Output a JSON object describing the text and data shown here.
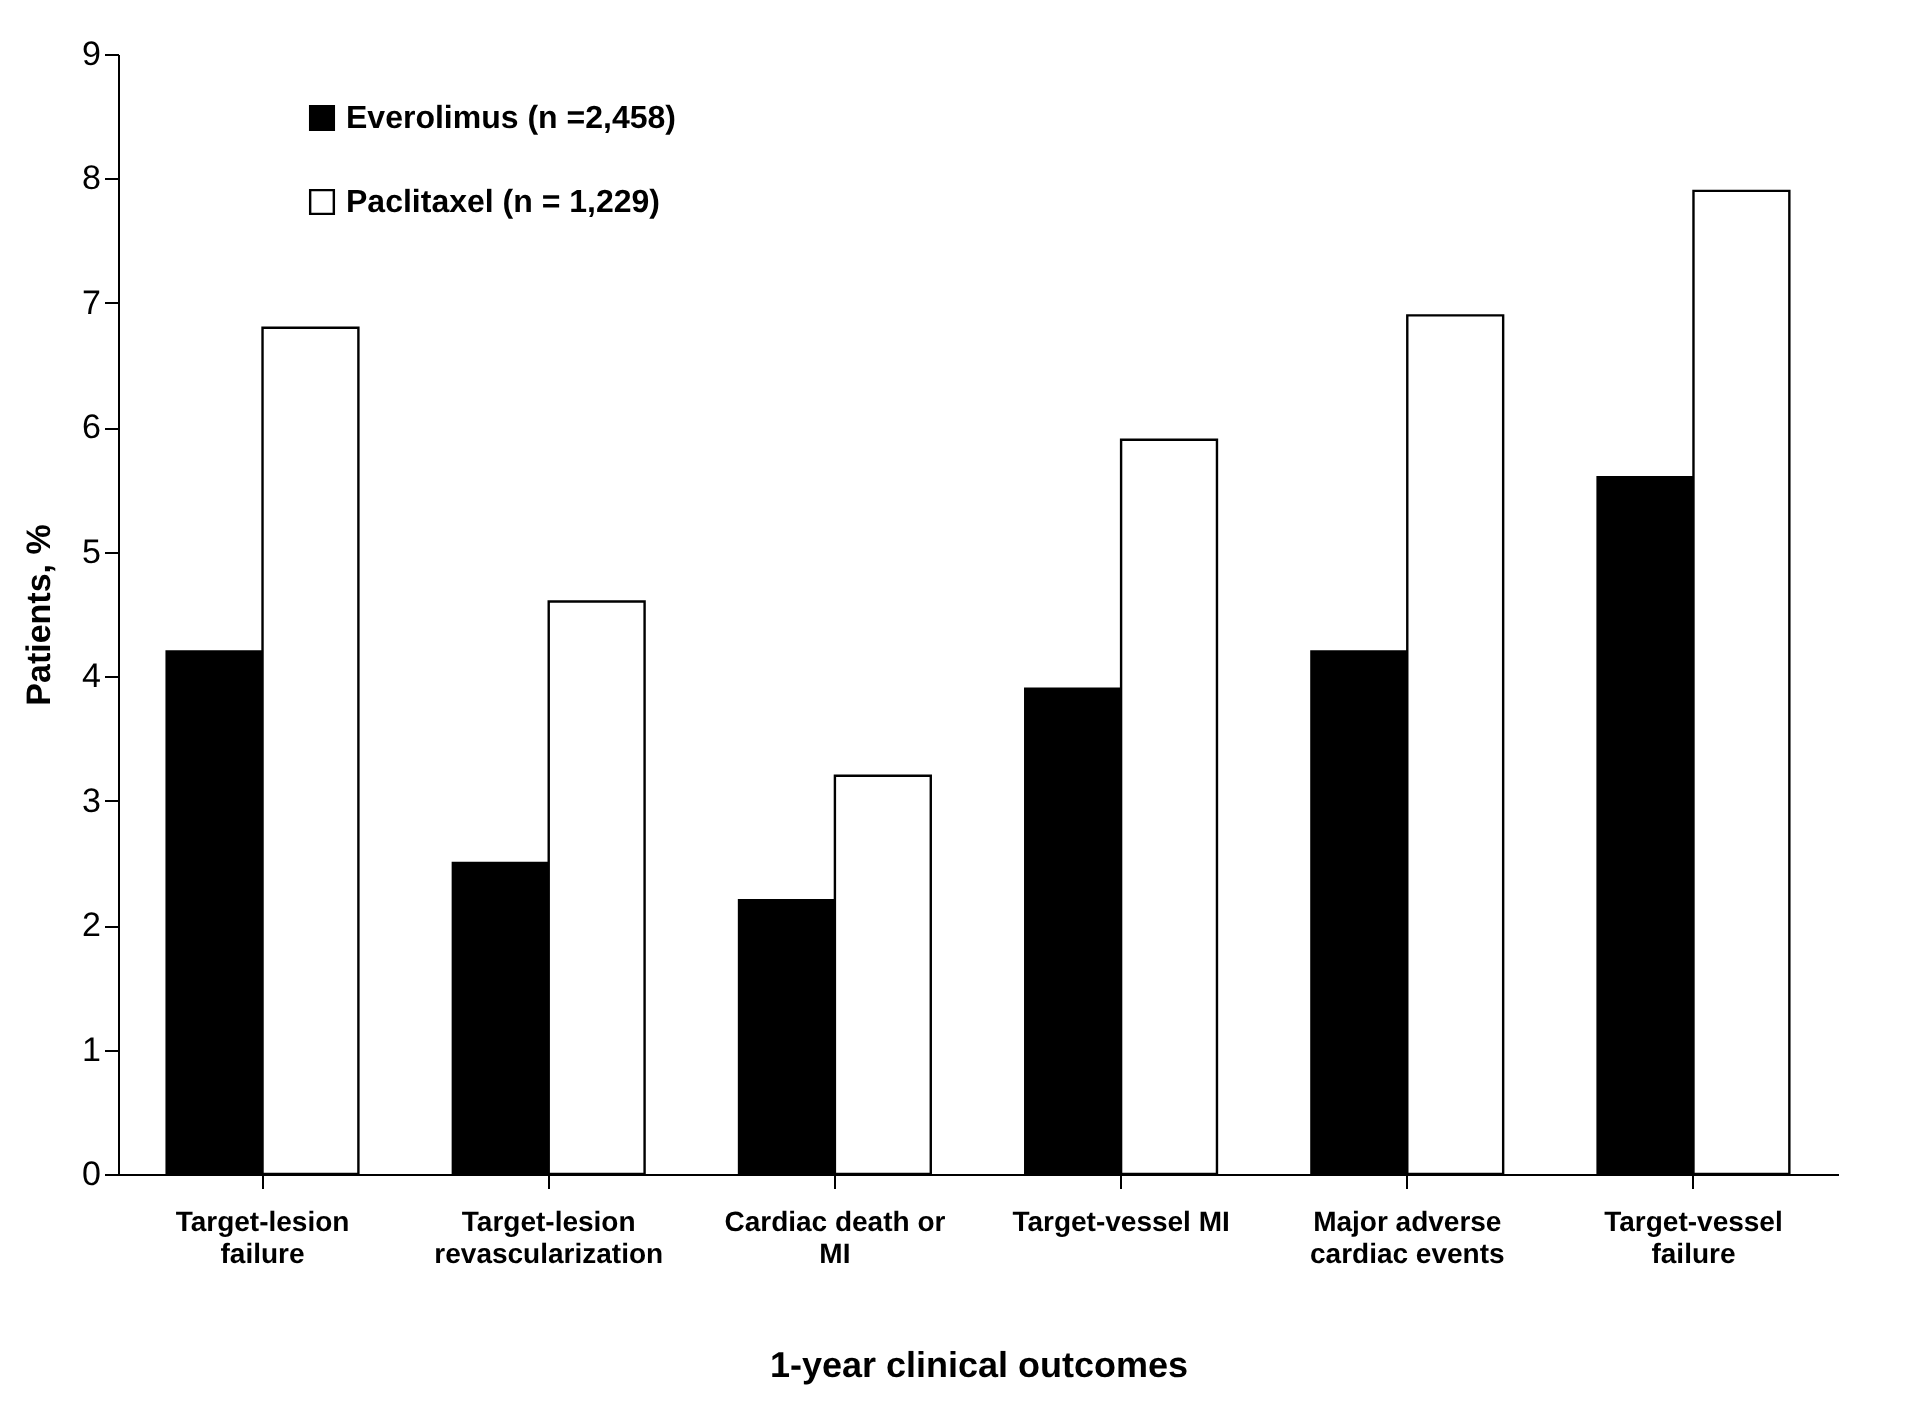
{
  "chart_data": {
    "type": "bar",
    "xlabel": "1-year clinical outcomes",
    "ylabel": "Patients, %",
    "categories": [
      "Target-lesion failure",
      "Target-lesion revascularization",
      "Cardiac death or MI",
      "Target-vessel MI",
      "Major adverse cardiac events",
      "Target-vessel failure"
    ],
    "series": [
      {
        "name": "Everolimus (n =2,458)",
        "color": "#000000",
        "values": [
          4.2,
          2.5,
          2.2,
          3.9,
          4.2,
          5.6
        ]
      },
      {
        "name": "Paclitaxel (n = 1,229)",
        "color": "#ffffff",
        "values": [
          6.8,
          4.6,
          3.2,
          5.9,
          6.9,
          7.9
        ]
      }
    ],
    "ylim": [
      0,
      9
    ],
    "yticks": [
      0,
      1,
      2,
      3,
      4,
      5,
      6,
      7,
      8,
      9
    ],
    "grid": false,
    "legend": "top left"
  }
}
